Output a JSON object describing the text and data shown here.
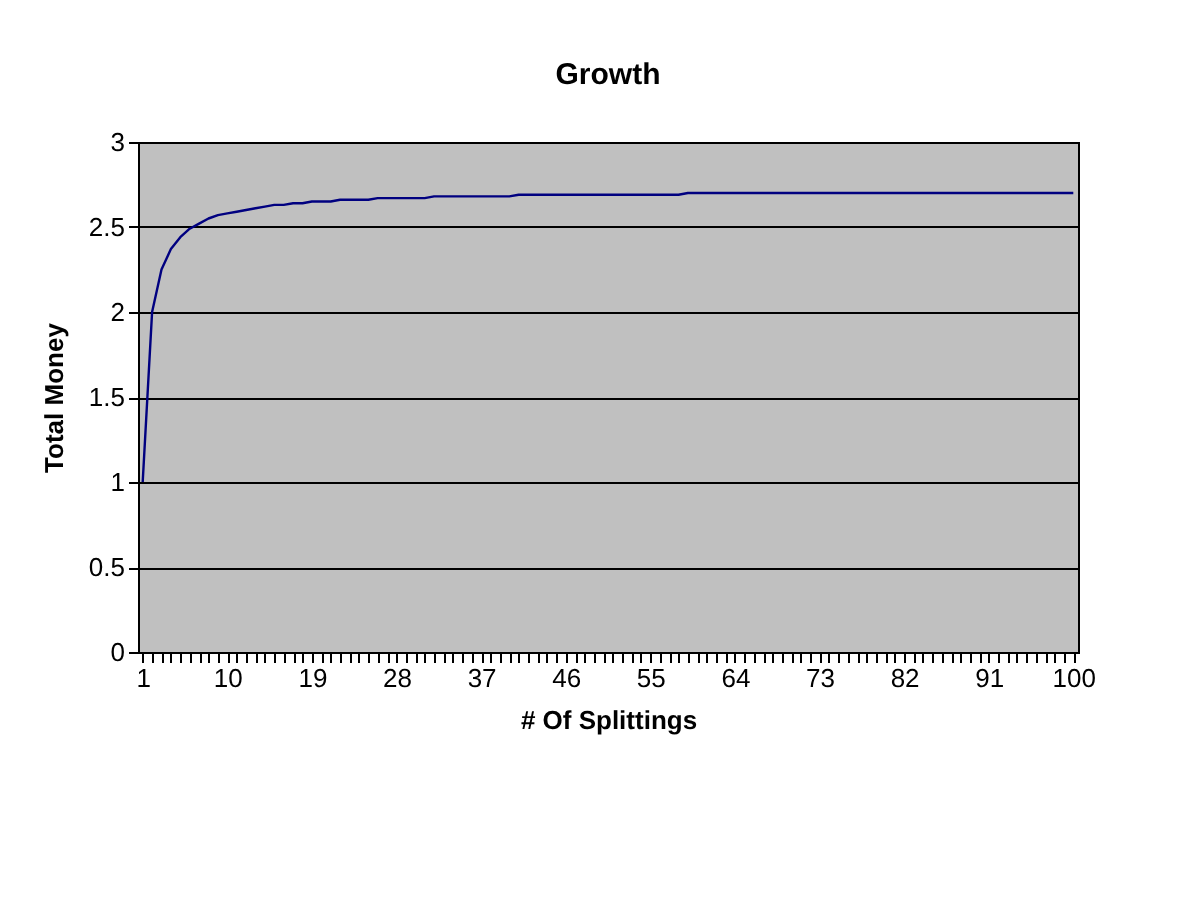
{
  "chart_data": {
    "type": "line",
    "title": "Growth",
    "xlabel": "# Of Splittings",
    "ylabel": "Total Money",
    "categories": [
      "1",
      null,
      null,
      null,
      null,
      null,
      null,
      null,
      null,
      "10",
      null,
      null,
      null,
      null,
      null,
      null,
      null,
      null,
      "19",
      null,
      null,
      null,
      null,
      null,
      null,
      null,
      null,
      "28",
      null,
      null,
      null,
      null,
      null,
      null,
      null,
      null,
      "37",
      null,
      null,
      null,
      null,
      null,
      null,
      null,
      null,
      "46",
      null,
      null,
      null,
      null,
      null,
      null,
      null,
      null,
      "55",
      null,
      null,
      null,
      null,
      null,
      null,
      null,
      null,
      "64",
      null,
      null,
      null,
      null,
      null,
      null,
      null,
      null,
      "73",
      null,
      null,
      null,
      null,
      null,
      null,
      null,
      null,
      "82",
      null,
      null,
      null,
      null,
      null,
      null,
      null,
      null,
      "91",
      null,
      null,
      null,
      null,
      null,
      null,
      null,
      null,
      "100"
    ],
    "series": [
      {
        "color": "#000080",
        "values": [
          1,
          2.0,
          2.25,
          2.37,
          2.44,
          2.49,
          2.52,
          2.55,
          2.57,
          2.58,
          2.59,
          2.6,
          2.61,
          2.62,
          2.63,
          2.63,
          2.64,
          2.64,
          2.65,
          2.65,
          2.65,
          2.66,
          2.66,
          2.66,
          2.66,
          2.67,
          2.67,
          2.67,
          2.67,
          2.67,
          2.67,
          2.68,
          2.68,
          2.68,
          2.68,
          2.68,
          2.68,
          2.68,
          2.68,
          2.68,
          2.69,
          2.69,
          2.69,
          2.69,
          2.69,
          2.69,
          2.69,
          2.69,
          2.69,
          2.69,
          2.69,
          2.69,
          2.69,
          2.69,
          2.69,
          2.69,
          2.69,
          2.69,
          2.7,
          2.7,
          2.7,
          2.7,
          2.7,
          2.7,
          2.7,
          2.7,
          2.7,
          2.7,
          2.7,
          2.7,
          2.7,
          2.7,
          2.7,
          2.7,
          2.7,
          2.7,
          2.7,
          2.7,
          2.7,
          2.7,
          2.7,
          2.7,
          2.7,
          2.7,
          2.7,
          2.7,
          2.7,
          2.7,
          2.7,
          2.7,
          2.7,
          2.7,
          2.7,
          2.7,
          2.7,
          2.7,
          2.7,
          2.7,
          2.7,
          2.7
        ]
      }
    ],
    "ylim": [
      0,
      3
    ],
    "yticks": [
      0,
      0.5,
      1,
      1.5,
      2,
      2.5,
      3
    ],
    "grid": "y",
    "marker": "none",
    "line_style": "solid"
  }
}
